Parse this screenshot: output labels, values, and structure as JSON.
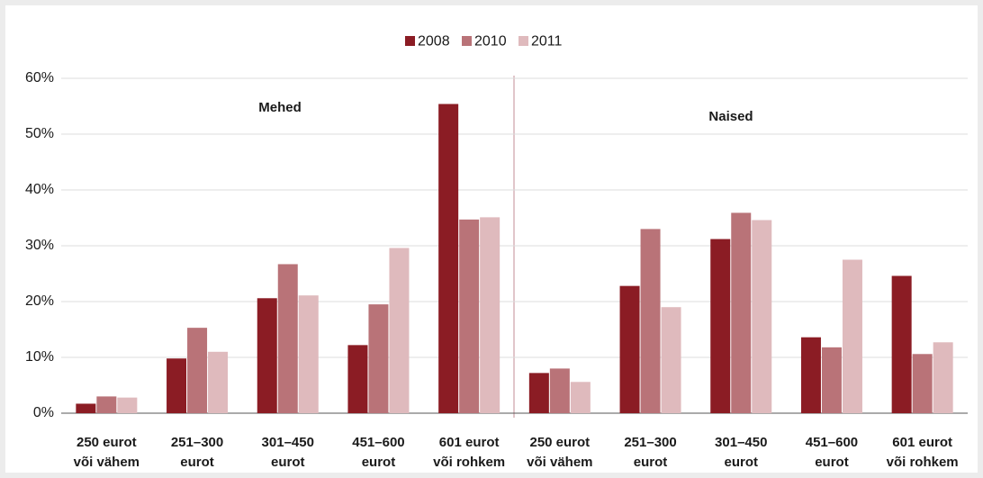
{
  "chart_data": {
    "type": "bar",
    "categories": [
      [
        "250 eurot",
        "või vähem"
      ],
      [
        "251–300",
        "eurot"
      ],
      [
        "301–450",
        "eurot"
      ],
      [
        "451–600",
        "eurot"
      ],
      [
        "601 eurot",
        "või rohkem"
      ],
      [
        "250 eurot",
        "või vähem"
      ],
      [
        "251–300",
        "eurot"
      ],
      [
        "301–450",
        "eurot"
      ],
      [
        "451–600",
        "eurot"
      ],
      [
        "601 eurot",
        "või rohkem"
      ]
    ],
    "series": [
      {
        "name": "2008",
        "color": "#8b1c24",
        "values": [
          1.7,
          9.8,
          20.6,
          12.2,
          55.4,
          7.2,
          22.8,
          31.2,
          13.6,
          24.6
        ]
      },
      {
        "name": "2010",
        "color": "#b97378",
        "values": [
          3.0,
          15.3,
          26.7,
          19.5,
          34.7,
          8.0,
          33.0,
          35.9,
          11.8,
          10.6
        ]
      },
      {
        "name": "2011",
        "color": "#dfbabd",
        "values": [
          2.8,
          11.0,
          21.1,
          29.6,
          35.1,
          5.6,
          19.0,
          34.6,
          27.5,
          12.7
        ]
      }
    ],
    "annotations": [
      "Mehed",
      "Naised"
    ],
    "ylim": [
      0,
      60
    ],
    "yticks": [
      {
        "value": 0,
        "label": "0%"
      },
      {
        "value": 10,
        "label": "10%"
      },
      {
        "value": 20,
        "label": "20%"
      },
      {
        "value": 30,
        "label": "30%"
      },
      {
        "value": 40,
        "label": "40%"
      },
      {
        "value": 50,
        "label": "50%"
      },
      {
        "value": 60,
        "label": "60%"
      }
    ],
    "grid": true,
    "legend": "top"
  }
}
